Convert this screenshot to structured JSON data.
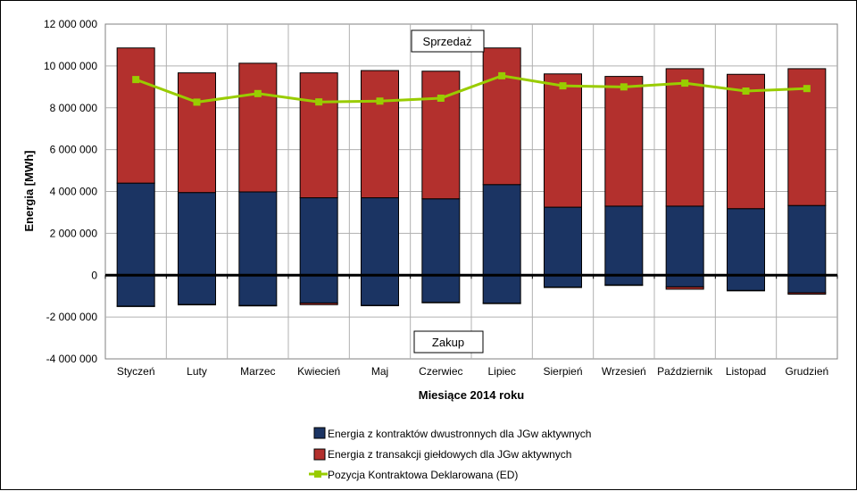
{
  "chart_data": {
    "type": "bar",
    "stacked": true,
    "xlabel": "Miesiące 2014 roku",
    "ylabel": "Energia [MWh]",
    "ylim": [
      -4000000,
      12000000
    ],
    "yticks": [
      12000000,
      10000000,
      8000000,
      6000000,
      4000000,
      2000000,
      0,
      -2000000,
      -4000000
    ],
    "ytick_labels": [
      "12 000 000",
      "10 000 000",
      "8 000 000",
      "6 000 000",
      "4 000 000",
      "2 000 000",
      "0",
      "-2 000 000",
      "-4 000 000"
    ],
    "categories": [
      "Styczeń",
      "Luty",
      "Marzec",
      "Kwiecień",
      "Maj",
      "Czerwiec",
      "Lipiec",
      "Sierpień",
      "Wrzesień",
      "Październik",
      "Listopad",
      "Grudzień"
    ],
    "series": [
      {
        "name": "Energia z kontraktów dwustronnych dla JGw aktywnych",
        "type": "bar",
        "color": "#1b3463",
        "values": [
          4400000,
          3950000,
          3980000,
          3700000,
          3700000,
          3650000,
          4330000,
          3250000,
          3300000,
          3300000,
          3180000,
          3330000
        ],
        "negative_values": [
          -1480000,
          -1400000,
          -1450000,
          -1330000,
          -1440000,
          -1300000,
          -1340000,
          -570000,
          -470000,
          -560000,
          -730000,
          -840000
        ]
      },
      {
        "name": "Energia z transakcji giełdowych dla JGw aktywnych",
        "type": "bar",
        "color": "#b3302d",
        "values": [
          6460000,
          5720000,
          6150000,
          5970000,
          6080000,
          6100000,
          6530000,
          6370000,
          6200000,
          6570000,
          6420000,
          6540000
        ],
        "negative_values": [
          -20000,
          -20000,
          -20000,
          -80000,
          -20000,
          -20000,
          -20000,
          -20000,
          -20000,
          -110000,
          -20000,
          -70000
        ]
      },
      {
        "name": "Pozycja Kontraktowa Deklarowana (ED)",
        "type": "line",
        "color": "#99cc00",
        "values": [
          9350000,
          8270000,
          8680000,
          8280000,
          8320000,
          8460000,
          9530000,
          9050000,
          9000000,
          9180000,
          8800000,
          8920000
        ]
      }
    ],
    "annotations": [
      "Sprzedaż",
      "Zakup"
    ],
    "grid": true,
    "legend_position": "bottom"
  }
}
